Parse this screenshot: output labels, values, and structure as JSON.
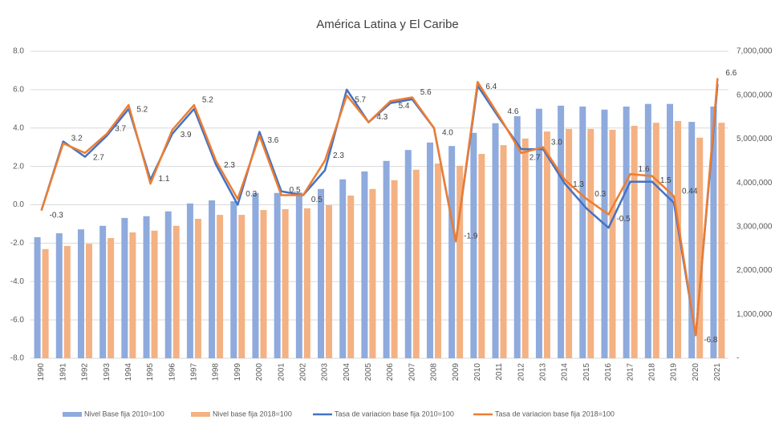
{
  "chart_data": {
    "type": "bar_line_combo",
    "title": "América Latina y El Caribe",
    "categories": [
      "1990",
      "1991",
      "1992",
      "1993",
      "1994",
      "1995",
      "1996",
      "1997",
      "1998",
      "1999",
      "2000",
      "2001",
      "2002",
      "2003",
      "2004",
      "2005",
      "2006",
      "2007",
      "2008",
      "2009",
      "2010",
      "2011",
      "2012",
      "2013",
      "2014",
      "2015",
      "2016",
      "2017",
      "2018",
      "2019",
      "2020",
      "2021"
    ],
    "ylim": [
      -8,
      8
    ],
    "yticks": [
      {
        "value": -8,
        "label": "-8.0"
      },
      {
        "value": -6,
        "label": "-6.0"
      },
      {
        "value": -4,
        "label": "-4.0"
      },
      {
        "value": -2,
        "label": "-2.0"
      },
      {
        "value": 0,
        "label": "0.0"
      },
      {
        "value": 2,
        "label": "2.0"
      },
      {
        "value": 4,
        "label": "4.0"
      },
      {
        "value": 6,
        "label": "6.0"
      },
      {
        "value": 8,
        "label": "8.0"
      }
    ],
    "y2lim": [
      0,
      7000000
    ],
    "y2ticks": [
      {
        "value": 0,
        "label": "-"
      },
      {
        "value": 1000000,
        "label": "1,000,000"
      },
      {
        "value": 2000000,
        "label": "2,000,000"
      },
      {
        "value": 3000000,
        "label": "3,000,000"
      },
      {
        "value": 4000000,
        "label": "4,000,000"
      },
      {
        "value": 5000000,
        "label": "5,000,000"
      },
      {
        "value": 6000000,
        "label": "6,000,000"
      },
      {
        "value": 7000000,
        "label": "7,000,000"
      }
    ],
    "grid": true,
    "legend": "bottom",
    "series": [
      {
        "name": "Nivel Base fija 2010=100",
        "kind": "bar",
        "axis": "y2",
        "color": "#8faadc",
        "values": [
          2760000,
          2850000,
          2940000,
          3020000,
          3200000,
          3240000,
          3350000,
          3530000,
          3600000,
          3580000,
          3770000,
          3770000,
          3780000,
          3860000,
          4080000,
          4260000,
          4500000,
          4750000,
          4920000,
          4840000,
          5140000,
          5360000,
          5520000,
          5690000,
          5760000,
          5740000,
          5670000,
          5740000,
          5800000,
          5800000,
          5390000,
          5740000
        ]
      },
      {
        "name": "Nivel base fija 2018=100",
        "kind": "bar",
        "axis": "y2",
        "color": "#f4b183",
        "values": [
          2490000,
          2560000,
          2610000,
          2740000,
          2870000,
          2910000,
          3020000,
          3180000,
          3270000,
          3270000,
          3380000,
          3400000,
          3420000,
          3490000,
          3710000,
          3860000,
          4060000,
          4300000,
          4440000,
          4390000,
          4660000,
          4860000,
          5010000,
          5170000,
          5230000,
          5230000,
          5210000,
          5300000,
          5370000,
          5410000,
          5030000,
          5370000
        ]
      },
      {
        "name": "Tasa de variacion base fija 2010=100",
        "kind": "line",
        "color": "#4472c4",
        "values": [
          -0.3,
          3.3,
          2.5,
          3.6,
          5.0,
          1.3,
          3.7,
          5.0,
          2.1,
          0.0,
          3.8,
          0.7,
          0.5,
          1.8,
          6.0,
          4.3,
          5.3,
          5.5,
          4.0,
          -1.9,
          6.2,
          4.5,
          2.9,
          2.9,
          1.1,
          -0.2,
          -1.2,
          1.2,
          1.2,
          0.1,
          -6.8,
          6.3
        ]
      },
      {
        "name": "Tasa de variacion base fija 2018=100",
        "kind": "line",
        "color": "#ed7d31",
        "values": [
          -0.3,
          3.2,
          2.7,
          3.7,
          5.2,
          1.1,
          3.9,
          5.2,
          2.3,
          0.3,
          3.6,
          0.5,
          0.5,
          2.3,
          5.7,
          4.3,
          5.4,
          5.6,
          4.0,
          -1.9,
          6.4,
          4.6,
          2.7,
          3.0,
          1.3,
          0.3,
          -0.5,
          1.6,
          1.5,
          0.44,
          -6.8,
          6.6
        ],
        "value_labels": [
          "-0.3",
          "3.2",
          "2.7",
          "3.7",
          "5.2",
          "1.1",
          "3.9",
          "5.2",
          "2.3",
          "0.3",
          "3.6",
          "0.5",
          "0.5",
          "2.3",
          "5.7",
          "4.3",
          "5.4",
          "5.6",
          "4.0",
          "-1.9",
          "6.4",
          "4.6",
          "2.7",
          "3.0",
          "1.3",
          "0.3",
          "-0.5",
          "1.6",
          "1.5",
          "0.44",
          "-6.8",
          "6.6"
        ]
      }
    ]
  }
}
